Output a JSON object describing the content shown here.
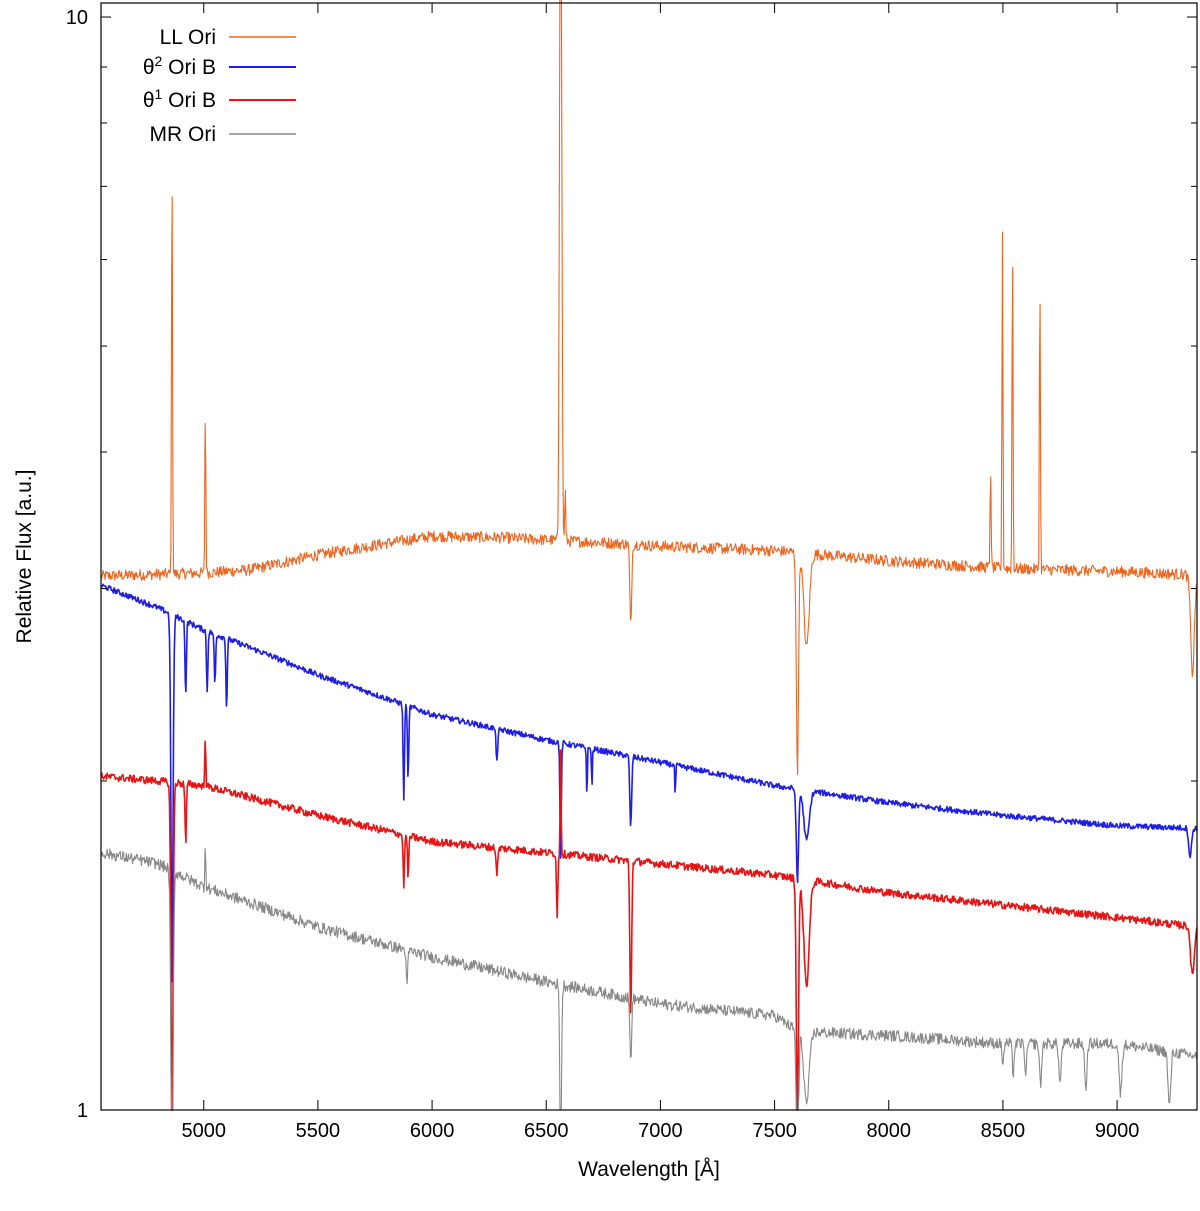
{
  "chart_data": {
    "type": "line",
    "title": "",
    "xlabel": "Wavelength [Å]",
    "ylabel": "Relative Flux [a.u.]",
    "xlim": [
      4550,
      9350
    ],
    "ylim": [
      1,
      10.3
    ],
    "yscale": "log",
    "grid": false,
    "legend_position": "top-left",
    "x_ticks": [
      "5000",
      "5500",
      "6000",
      "6500",
      "7000",
      "7500",
      "8000",
      "8500",
      "9000"
    ],
    "x_tick_values": [
      5000,
      5500,
      6000,
      6500,
      7000,
      7500,
      8000,
      8500,
      9000
    ],
    "y_ticks": [
      "1",
      "10"
    ],
    "y_tick_values": [
      1,
      10
    ],
    "y_minor_tick_values": [
      2,
      3,
      4,
      5,
      6,
      7,
      8,
      9
    ],
    "series": [
      {
        "name": "LL Ori",
        "sup": "",
        "color": "#ee6520",
        "width": 1.1,
        "noise": 0.012,
        "continuum": [
          [
            4550,
            3.08
          ],
          [
            5000,
            3.1
          ],
          [
            5200,
            3.12
          ],
          [
            5500,
            3.22
          ],
          [
            5800,
            3.3
          ],
          [
            6000,
            3.35
          ],
          [
            6300,
            3.34
          ],
          [
            6550,
            3.32
          ],
          [
            6800,
            3.3
          ],
          [
            7000,
            3.28
          ],
          [
            7500,
            3.25
          ],
          [
            8000,
            3.18
          ],
          [
            8500,
            3.13
          ],
          [
            9000,
            3.11
          ],
          [
            9300,
            3.09
          ],
          [
            9350,
            3.04
          ]
        ],
        "features": [
          {
            "center": 4861,
            "depth": -1.4,
            "width": 2
          },
          {
            "center": 5007,
            "depth": -0.42,
            "width": 2
          },
          {
            "center": 6563,
            "depth": -3.26,
            "width": 4
          },
          {
            "center": 6583,
            "depth": -0.12,
            "width": 2
          },
          {
            "center": 6870,
            "depth": 0.16,
            "width": 4
          },
          {
            "center": 7600,
            "depth": 0.38,
            "width": 5
          },
          {
            "center": 7640,
            "depth": 0.18,
            "width": 12
          },
          {
            "center": 8446,
            "depth": -0.25,
            "width": 2
          },
          {
            "center": 8498,
            "depth": -1.05,
            "width": 2
          },
          {
            "center": 8542,
            "depth": -1.0,
            "width": 2
          },
          {
            "center": 8662,
            "depth": -0.86,
            "width": 2
          },
          {
            "center": 9330,
            "depth": 0.18,
            "width": 8
          }
        ]
      },
      {
        "name": "Ori B",
        "sup": "2",
        "color": "#1e1ee6",
        "width": 1.6,
        "noise": 0.006,
        "continuum": [
          [
            4550,
            3.02
          ],
          [
            4800,
            2.88
          ],
          [
            5000,
            2.75
          ],
          [
            5500,
            2.5
          ],
          [
            6000,
            2.3
          ],
          [
            6500,
            2.18
          ],
          [
            7000,
            2.08
          ],
          [
            7500,
            1.98
          ],
          [
            8000,
            1.91
          ],
          [
            8500,
            1.86
          ],
          [
            9000,
            1.82
          ],
          [
            9350,
            1.81
          ]
        ],
        "features": [
          {
            "center": 4861,
            "depth": 0.55,
            "width": 5
          },
          {
            "center": 4921,
            "depth": 0.15,
            "width": 3
          },
          {
            "center": 5015,
            "depth": 0.12,
            "width": 3
          },
          {
            "center": 5049,
            "depth": 0.1,
            "width": 3
          },
          {
            "center": 5100,
            "depth": 0.14,
            "width": 3
          },
          {
            "center": 5876,
            "depth": 0.18,
            "width": 3
          },
          {
            "center": 5895,
            "depth": 0.14,
            "width": 3
          },
          {
            "center": 6284,
            "depth": 0.06,
            "width": 4
          },
          {
            "center": 6563,
            "depth": 0.22,
            "width": 3
          },
          {
            "center": 6678,
            "depth": 0.1,
            "width": 2
          },
          {
            "center": 6700,
            "depth": 0.08,
            "width": 2
          },
          {
            "center": 6870,
            "depth": 0.14,
            "width": 4
          },
          {
            "center": 7065,
            "depth": 0.06,
            "width": 2
          },
          {
            "center": 7600,
            "depth": 0.18,
            "width": 5
          },
          {
            "center": 7640,
            "depth": 0.1,
            "width": 12
          },
          {
            "center": 9320,
            "depth": 0.06,
            "width": 6
          }
        ]
      },
      {
        "name": "Ori B",
        "sup": "1",
        "color": "#e61414",
        "width": 1.6,
        "noise": 0.008,
        "continuum": [
          [
            4550,
            2.02
          ],
          [
            4800,
            2.0
          ],
          [
            5000,
            1.98
          ],
          [
            5500,
            1.86
          ],
          [
            6000,
            1.76
          ],
          [
            6500,
            1.72
          ],
          [
            7000,
            1.68
          ],
          [
            7500,
            1.64
          ],
          [
            8000,
            1.58
          ],
          [
            8500,
            1.54
          ],
          [
            9000,
            1.5
          ],
          [
            9350,
            1.47
          ]
        ],
        "features": [
          {
            "center": 4861,
            "depth": 0.55,
            "width": 5
          },
          {
            "center": 4921,
            "depth": 0.12,
            "width": 3
          },
          {
            "center": 5007,
            "depth": -0.12,
            "width": 2
          },
          {
            "center": 5876,
            "depth": 0.1,
            "width": 3
          },
          {
            "center": 5895,
            "depth": 0.08,
            "width": 3
          },
          {
            "center": 6284,
            "depth": 0.05,
            "width": 4
          },
          {
            "center": 6548,
            "depth": 0.12,
            "width": 3
          },
          {
            "center": 6563,
            "depth": -0.25,
            "width": 2
          },
          {
            "center": 6870,
            "depth": 0.28,
            "width": 4
          },
          {
            "center": 7600,
            "depth": 0.42,
            "width": 5
          },
          {
            "center": 7640,
            "depth": 0.2,
            "width": 12
          },
          {
            "center": 9330,
            "depth": 0.1,
            "width": 8
          }
        ]
      },
      {
        "name": "MR Ori",
        "sup": "",
        "color": "#888888",
        "width": 1.1,
        "noise": 0.012,
        "continuum": [
          [
            4550,
            1.72
          ],
          [
            4800,
            1.68
          ],
          [
            5000,
            1.6
          ],
          [
            5500,
            1.47
          ],
          [
            6000,
            1.38
          ],
          [
            6500,
            1.31
          ],
          [
            7000,
            1.25
          ],
          [
            7500,
            1.22
          ],
          [
            7600,
            1.18
          ],
          [
            8000,
            1.17
          ],
          [
            8500,
            1.15
          ],
          [
            9000,
            1.15
          ],
          [
            9350,
            1.12
          ]
        ],
        "features": [
          {
            "center": 4861,
            "depth": 0.58,
            "width": 5
          },
          {
            "center": 5007,
            "depth": -0.1,
            "width": 2
          },
          {
            "center": 5890,
            "depth": 0.08,
            "width": 3
          },
          {
            "center": 6563,
            "depth": 0.3,
            "width": 4
          },
          {
            "center": 6870,
            "depth": 0.12,
            "width": 4
          },
          {
            "center": 7600,
            "depth": 0.3,
            "width": 5
          },
          {
            "center": 7640,
            "depth": 0.14,
            "width": 12
          },
          {
            "center": 8500,
            "depth": 0.04,
            "width": 4
          },
          {
            "center": 8545,
            "depth": 0.06,
            "width": 4
          },
          {
            "center": 8600,
            "depth": 0.07,
            "width": 4
          },
          {
            "center": 8665,
            "depth": 0.08,
            "width": 5
          },
          {
            "center": 8750,
            "depth": 0.08,
            "width": 5
          },
          {
            "center": 8863,
            "depth": 0.09,
            "width": 5
          },
          {
            "center": 9015,
            "depth": 0.1,
            "width": 6
          },
          {
            "center": 9229,
            "depth": 0.11,
            "width": 6
          }
        ]
      }
    ]
  }
}
